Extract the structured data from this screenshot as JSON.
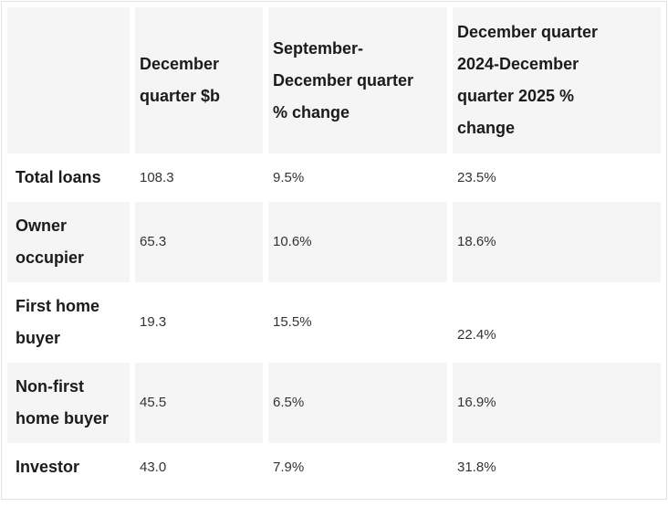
{
  "chart_data": {
    "type": "table",
    "columns": [
      "",
      "December quarter $b",
      "September-December quarter % change",
      "December quarter 2024-December quarter 2025 % change"
    ],
    "rows": [
      {
        "label": "Total loans",
        "values": [
          "108.3",
          "9.5%",
          "23.5%"
        ]
      },
      {
        "label": "Owner occupier",
        "values": [
          "65.3",
          "10.6%",
          "18.6%"
        ]
      },
      {
        "label": "First home buyer",
        "values": [
          "19.3",
          "15.5%",
          "22.4%"
        ]
      },
      {
        "label": "Non-first home buyer",
        "values": [
          "45.5",
          "6.5%",
          "16.9%"
        ]
      },
      {
        "label": "Investor",
        "values": [
          "43.0",
          "7.9%",
          "31.8%"
        ]
      }
    ]
  },
  "display": {
    "headers": [
      "",
      "December\nquarter $b",
      "September-\nDecember quarter\n% change",
      "December quarter\n2024-December\nquarter 2025 %\nchange"
    ]
  },
  "colors": {
    "stripe": "#f5f5f5",
    "frame_border": "#e3e3e3",
    "label_text": "#1b1b1b",
    "value_text": "#333333"
  }
}
